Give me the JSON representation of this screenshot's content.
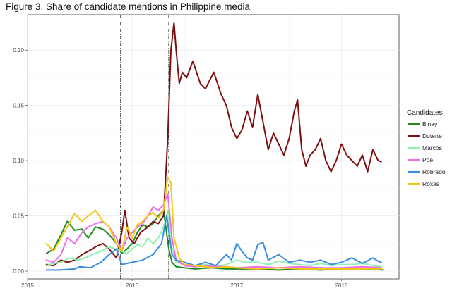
{
  "chart_data": {
    "type": "line",
    "title": "Figure 3. Share of candidate mentions in Philippine media",
    "xlabel": "",
    "ylabel": "",
    "x_ticks": [
      "2015",
      "2016",
      "2017",
      "2018"
    ],
    "y_ticks": [
      "0.00",
      "0.05",
      "0.10",
      "0.15",
      "0.20"
    ],
    "xlim": [
      2015.0,
      2018.55
    ],
    "ylim": [
      -0.007,
      0.232
    ],
    "grid": true,
    "legend_placement": "right",
    "legend_title": "Candidates",
    "vertical_dashed_lines": [
      2015.89,
      2016.35
    ],
    "series": [
      {
        "name": "Binay",
        "color": "#228b22",
        "x": [
          2015.18,
          2015.25,
          2015.32,
          2015.38,
          2015.45,
          2015.52,
          2015.58,
          2015.65,
          2015.72,
          2015.78,
          2015.85,
          2015.9,
          2015.95,
          2016.0,
          2016.05,
          2016.1,
          2016.15,
          2016.2,
          2016.25,
          2016.3,
          2016.35,
          2016.38,
          2016.42,
          2016.5,
          2016.6,
          2016.75,
          2016.9,
          2017.0,
          2017.2,
          2017.4,
          2017.6,
          2017.8,
          2018.0,
          2018.2,
          2018.4
        ],
        "y": [
          0.016,
          0.02,
          0.033,
          0.045,
          0.037,
          0.038,
          0.03,
          0.04,
          0.038,
          0.033,
          0.025,
          0.016,
          0.02,
          0.025,
          0.035,
          0.042,
          0.04,
          0.043,
          0.05,
          0.055,
          0.02,
          0.008,
          0.004,
          0.003,
          0.002,
          0.003,
          0.002,
          0.002,
          0.002,
          0.001,
          0.002,
          0.001,
          0.002,
          0.002,
          0.001
        ]
      },
      {
        "name": "Duterte",
        "color": "#7f1010",
        "x": [
          2015.18,
          2015.25,
          2015.32,
          2015.38,
          2015.45,
          2015.52,
          2015.58,
          2015.65,
          2015.72,
          2015.78,
          2015.85,
          2015.9,
          2015.93,
          2015.97,
          2016.02,
          2016.08,
          2016.15,
          2016.2,
          2016.25,
          2016.3,
          2016.34,
          2016.37,
          2016.4,
          2016.42,
          2016.45,
          2016.48,
          2016.52,
          2016.58,
          2016.65,
          2016.7,
          2016.78,
          2016.85,
          2016.9,
          2016.95,
          2017.0,
          2017.05,
          2017.1,
          2017.15,
          2017.2,
          2017.25,
          2017.3,
          2017.35,
          2017.4,
          2017.45,
          2017.5,
          2017.55,
          2017.58,
          2017.62,
          2017.66,
          2017.7,
          2017.75,
          2017.8,
          2017.85,
          2017.9,
          2017.95,
          2018.0,
          2018.05,
          2018.1,
          2018.15,
          2018.2,
          2018.25,
          2018.3,
          2018.35,
          2018.38
        ],
        "y": [
          0.006,
          0.005,
          0.01,
          0.008,
          0.01,
          0.015,
          0.018,
          0.022,
          0.025,
          0.02,
          0.012,
          0.035,
          0.055,
          0.03,
          0.025,
          0.035,
          0.04,
          0.045,
          0.043,
          0.05,
          0.12,
          0.2,
          0.225,
          0.2,
          0.17,
          0.18,
          0.175,
          0.19,
          0.17,
          0.165,
          0.18,
          0.16,
          0.15,
          0.13,
          0.12,
          0.128,
          0.145,
          0.13,
          0.16,
          0.135,
          0.11,
          0.125,
          0.115,
          0.105,
          0.12,
          0.145,
          0.155,
          0.11,
          0.095,
          0.105,
          0.11,
          0.12,
          0.1,
          0.09,
          0.1,
          0.115,
          0.105,
          0.1,
          0.095,
          0.105,
          0.09,
          0.11,
          0.1,
          0.099
        ]
      },
      {
        "name": "Marcos",
        "color": "#8ff0b0",
        "x": [
          2015.18,
          2015.25,
          2015.32,
          2015.4,
          2015.48,
          2015.55,
          2015.62,
          2015.7,
          2015.78,
          2015.85,
          2015.9,
          2015.95,
          2016.0,
          2016.05,
          2016.1,
          2016.15,
          2016.2,
          2016.25,
          2016.3,
          2016.34,
          2016.38,
          2016.42,
          2016.5,
          2016.6,
          2016.7,
          2016.8,
          2016.9,
          2017.0,
          2017.1,
          2017.2,
          2017.3,
          2017.4,
          2017.5,
          2017.6,
          2017.7,
          2017.8,
          2017.9,
          2018.0,
          2018.1,
          2018.2,
          2018.3,
          2018.38
        ],
        "y": [
          0.005,
          0.007,
          0.008,
          0.012,
          0.01,
          0.012,
          0.015,
          0.018,
          0.022,
          0.02,
          0.018,
          0.016,
          0.02,
          0.024,
          0.022,
          0.03,
          0.025,
          0.03,
          0.04,
          0.055,
          0.02,
          0.008,
          0.006,
          0.005,
          0.006,
          0.004,
          0.006,
          0.01,
          0.008,
          0.008,
          0.006,
          0.009,
          0.007,
          0.006,
          0.005,
          0.007,
          0.005,
          0.006,
          0.006,
          0.007,
          0.005,
          0.004
        ]
      },
      {
        "name": "Poe",
        "color": "#ee6ee8",
        "x": [
          2015.18,
          2015.25,
          2015.32,
          2015.38,
          2015.45,
          2015.52,
          2015.58,
          2015.65,
          2015.72,
          2015.78,
          2015.85,
          2015.9,
          2015.95,
          2016.0,
          2016.05,
          2016.1,
          2016.15,
          2016.2,
          2016.25,
          2016.3,
          2016.34,
          2016.38,
          2016.42,
          2016.5,
          2016.6,
          2016.7,
          2016.8,
          2016.9,
          2017.0,
          2017.2,
          2017.4,
          2017.6,
          2017.8,
          2018.0,
          2018.2,
          2018.38
        ],
        "y": [
          0.01,
          0.008,
          0.015,
          0.03,
          0.025,
          0.035,
          0.04,
          0.043,
          0.045,
          0.04,
          0.03,
          0.018,
          0.03,
          0.035,
          0.04,
          0.043,
          0.05,
          0.058,
          0.055,
          0.06,
          0.07,
          0.03,
          0.01,
          0.005,
          0.004,
          0.005,
          0.004,
          0.004,
          0.003,
          0.004,
          0.003,
          0.004,
          0.003,
          0.003,
          0.004,
          0.003
        ]
      },
      {
        "name": "Robredo",
        "color": "#3a8ee0",
        "x": [
          2015.18,
          2015.3,
          2015.45,
          2015.5,
          2015.6,
          2015.7,
          2015.78,
          2015.85,
          2015.9,
          2016.0,
          2016.1,
          2016.2,
          2016.28,
          2016.33,
          2016.38,
          2016.42,
          2016.5,
          2016.6,
          2016.7,
          2016.8,
          2016.85,
          2016.9,
          2016.95,
          2017.0,
          2017.05,
          2017.1,
          2017.15,
          2017.2,
          2017.25,
          2017.3,
          2017.4,
          2017.5,
          2017.6,
          2017.7,
          2017.8,
          2017.9,
          2018.0,
          2018.1,
          2018.2,
          2018.3,
          2018.35,
          2018.38
        ],
        "y": [
          0.001,
          0.001,
          0.002,
          0.004,
          0.003,
          0.008,
          0.015,
          0.02,
          0.006,
          0.008,
          0.01,
          0.015,
          0.025,
          0.05,
          0.015,
          0.01,
          0.008,
          0.005,
          0.008,
          0.005,
          0.01,
          0.015,
          0.01,
          0.025,
          0.018,
          0.012,
          0.01,
          0.024,
          0.026,
          0.01,
          0.015,
          0.008,
          0.01,
          0.008,
          0.01,
          0.006,
          0.008,
          0.012,
          0.007,
          0.012,
          0.009,
          0.008
        ]
      },
      {
        "name": "Roxas",
        "color": "#f5c518",
        "x": [
          2015.18,
          2015.25,
          2015.32,
          2015.38,
          2015.45,
          2015.52,
          2015.58,
          2015.65,
          2015.72,
          2015.78,
          2015.85,
          2015.9,
          2015.95,
          2016.0,
          2016.05,
          2016.1,
          2016.15,
          2016.2,
          2016.25,
          2016.3,
          2016.34,
          2016.37,
          2016.4,
          2016.45,
          2016.5,
          2016.6,
          2016.7,
          2016.8,
          2016.9,
          2017.0,
          2017.2,
          2017.4,
          2017.6,
          2017.8,
          2018.0,
          2018.2,
          2018.38
        ],
        "y": [
          0.025,
          0.018,
          0.03,
          0.04,
          0.052,
          0.045,
          0.05,
          0.055,
          0.045,
          0.04,
          0.025,
          0.018,
          0.04,
          0.03,
          0.042,
          0.045,
          0.05,
          0.053,
          0.048,
          0.055,
          0.085,
          0.08,
          0.03,
          0.012,
          0.006,
          0.005,
          0.004,
          0.003,
          0.004,
          0.003,
          0.002,
          0.003,
          0.002,
          0.002,
          0.002,
          0.002,
          0.002
        ]
      }
    ]
  }
}
